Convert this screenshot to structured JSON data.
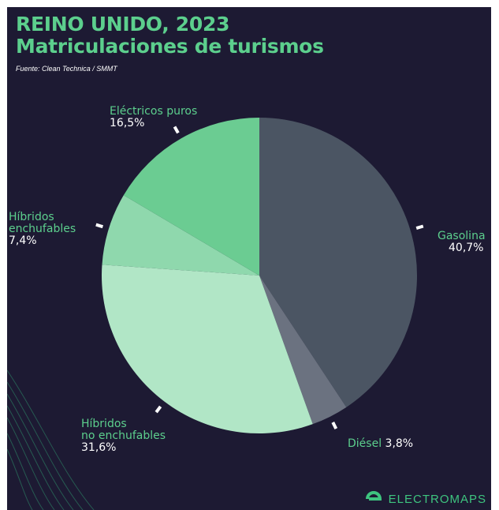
{
  "header": {
    "title_line1": "REINO UNIDO, 2023",
    "title_line2": "Matriculaciones de turismos",
    "source": "Fuente: Clean Technica / SMMT"
  },
  "colors": {
    "background": "#1d1a33",
    "title": "#5ccf8d"
  },
  "chart_data": {
    "type": "pie",
    "title": "REINO UNIDO, 2023 Matriculaciones de turismos",
    "categories": [
      "Gasolina",
      "Diésel",
      "Híbridos no enchufables",
      "Híbridos enchufables",
      "Eléctricos puros"
    ],
    "values": [
      40.7,
      3.8,
      31.6,
      7.4,
      16.5
    ],
    "value_labels": [
      "40,7%",
      "3,8%",
      "31,6%",
      "7,4%",
      "16,5%"
    ],
    "colors": [
      "#4b5563",
      "#6b7280",
      "#b1e6c6",
      "#8fd8ad",
      "#6bcc92"
    ],
    "start": "12 o'clock",
    "direction": "clockwise"
  },
  "labels": [
    {
      "name": "Gasolina",
      "pct": "40,7%"
    },
    {
      "name": "Diésel",
      "pct": "3,8%"
    },
    {
      "name": "Híbridos\nno enchufables",
      "pct": "31,6%"
    },
    {
      "name": "Híbridos\nenchufables",
      "pct": "7,4%"
    },
    {
      "name": "Eléctricos puros",
      "pct": "16,5%"
    }
  ],
  "brand": {
    "name": "ELECTROMAPS",
    "logo_icon": "e-logo-icon"
  }
}
